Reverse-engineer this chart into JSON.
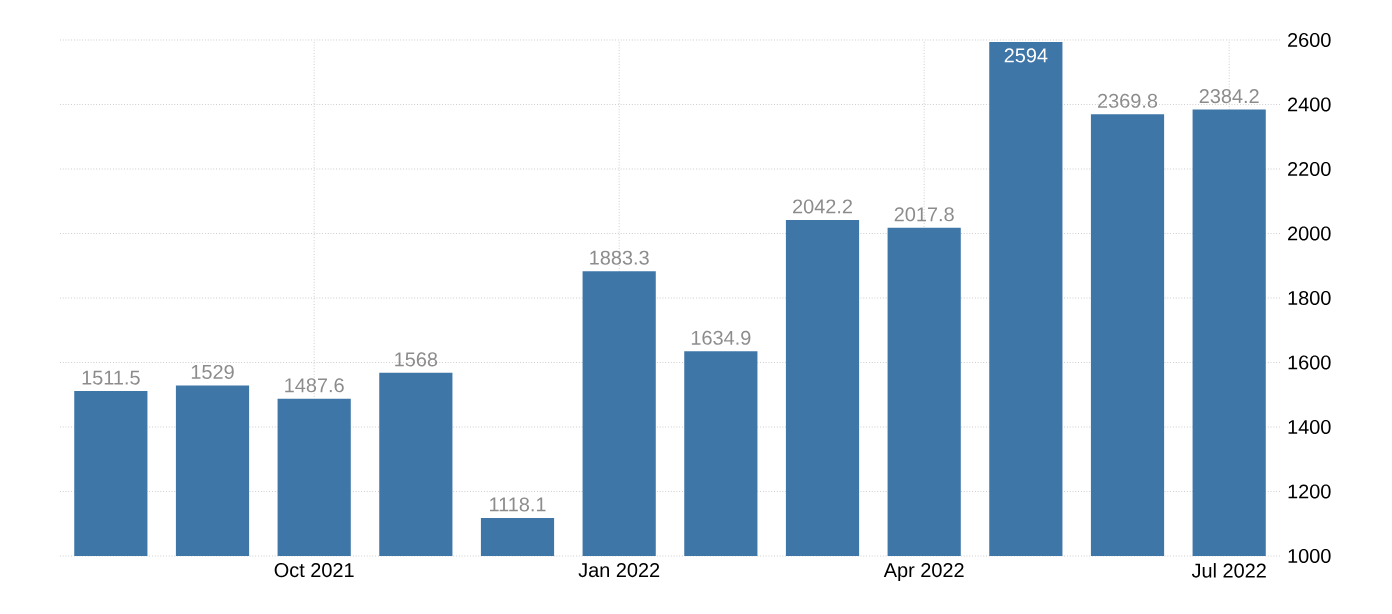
{
  "chart_data": {
    "type": "bar",
    "categories": [
      null,
      null,
      "Oct 2021",
      null,
      null,
      "Jan 2022",
      null,
      null,
      "Apr 2022",
      null,
      null,
      "Jul 2022"
    ],
    "values": [
      1511.5,
      1529,
      1487.6,
      1568,
      1118.1,
      1883.3,
      1634.9,
      2042.2,
      2017.8,
      2594,
      2369.8,
      2384.2
    ],
    "color": "#3f76a8",
    "ylim": [
      1000,
      2600
    ],
    "yticks": [
      1000,
      1200,
      1400,
      1600,
      1800,
      2000,
      2200,
      2400,
      2600
    ],
    "grid": true,
    "data_labels": true
  }
}
